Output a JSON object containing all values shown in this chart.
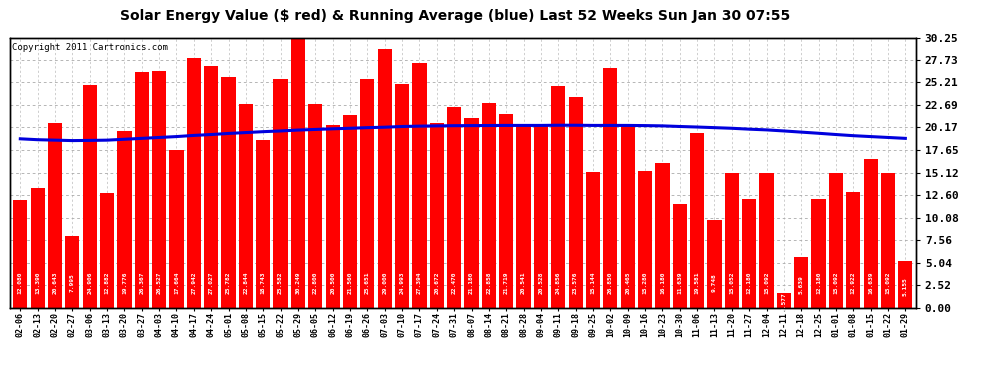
{
  "title": "Solar Energy Value ($ red) & Running Average (blue) Last 52 Weeks Sun Jan 30 07:55",
  "copyright": "Copyright 2011 Cartronics.com",
  "bar_color": "#ff0000",
  "line_color": "#0000dd",
  "bg_color": "#ffffff",
  "grid_color": "#aaaaaa",
  "categories": [
    "02-06",
    "02-13",
    "02-20",
    "02-27",
    "03-06",
    "03-13",
    "03-20",
    "03-27",
    "04-03",
    "04-10",
    "04-17",
    "04-24",
    "05-01",
    "05-08",
    "05-15",
    "05-22",
    "05-29",
    "06-05",
    "06-12",
    "06-19",
    "06-26",
    "07-03",
    "07-10",
    "07-17",
    "07-24",
    "07-31",
    "08-07",
    "08-14",
    "08-21",
    "08-28",
    "09-04",
    "09-11",
    "09-18",
    "09-25",
    "10-02",
    "10-09",
    "10-16",
    "10-23",
    "10-30",
    "11-06",
    "11-13",
    "11-20",
    "11-27",
    "12-04",
    "12-11",
    "12-18",
    "12-25",
    "01-01",
    "01-08",
    "01-15",
    "01-22",
    "01-29"
  ],
  "values": [
    12.08,
    13.39,
    20.643,
    7.995,
    24.906,
    12.882,
    19.776,
    26.367,
    26.527,
    17.664,
    27.942,
    27.027,
    25.782,
    22.844,
    18.743,
    25.582,
    30.249,
    22.8,
    20.5,
    21.56,
    25.651,
    29.0,
    24.993,
    27.394,
    20.672,
    22.47,
    21.18,
    22.858,
    21.719,
    20.541,
    20.528,
    24.856,
    23.576,
    15.144,
    26.85,
    20.465,
    15.28,
    16.18,
    11.639,
    19.581,
    9.748,
    15.052,
    12.18,
    15.092,
    1.577,
    5.639,
    12.18,
    15.092,
    12.922,
    16.639,
    15.092,
    5.155
  ],
  "running_avg": [
    18.9,
    18.8,
    18.75,
    18.7,
    18.72,
    18.75,
    18.85,
    18.95,
    19.05,
    19.15,
    19.28,
    19.38,
    19.5,
    19.6,
    19.7,
    19.78,
    19.88,
    19.95,
    20.02,
    20.08,
    20.15,
    20.2,
    20.28,
    20.32,
    20.35,
    20.37,
    20.38,
    20.39,
    20.4,
    20.4,
    20.4,
    20.42,
    20.42,
    20.4,
    20.4,
    20.4,
    20.38,
    20.35,
    20.28,
    20.22,
    20.15,
    20.08,
    19.98,
    19.9,
    19.78,
    19.65,
    19.52,
    19.38,
    19.25,
    19.15,
    19.05,
    18.95
  ],
  "yticks_right": [
    0.0,
    2.52,
    5.04,
    7.56,
    10.08,
    12.6,
    15.12,
    17.65,
    20.17,
    22.69,
    25.21,
    27.73,
    30.25
  ],
  "ymax": 30.25,
  "ymin": 0.0,
  "value_labels": [
    "12.080",
    "13.390",
    "20.643",
    "7.995",
    "24.906",
    "12.882",
    "19.776",
    "26.367",
    "26.527",
    "17.664",
    "27.942",
    "27.027",
    "25.782",
    "22.844",
    "18.743",
    "25.582",
    "30.249",
    "22.800",
    "20.500",
    "21.560",
    "25.651",
    "29.000",
    "24.993",
    "27.394",
    "20.672",
    "22.470",
    "21.180",
    "22.858",
    "21.719",
    "20.541",
    "20.528",
    "24.856",
    "23.576",
    "15.144",
    "26.850",
    "20.465",
    "15.280",
    "16.180",
    "11.639",
    "19.581",
    "9.748",
    "15.052",
    "12.180",
    "15.092",
    "1.577",
    "5.639",
    "12.180",
    "15.092",
    "12.922",
    "16.639",
    "15.092",
    "5.155"
  ]
}
